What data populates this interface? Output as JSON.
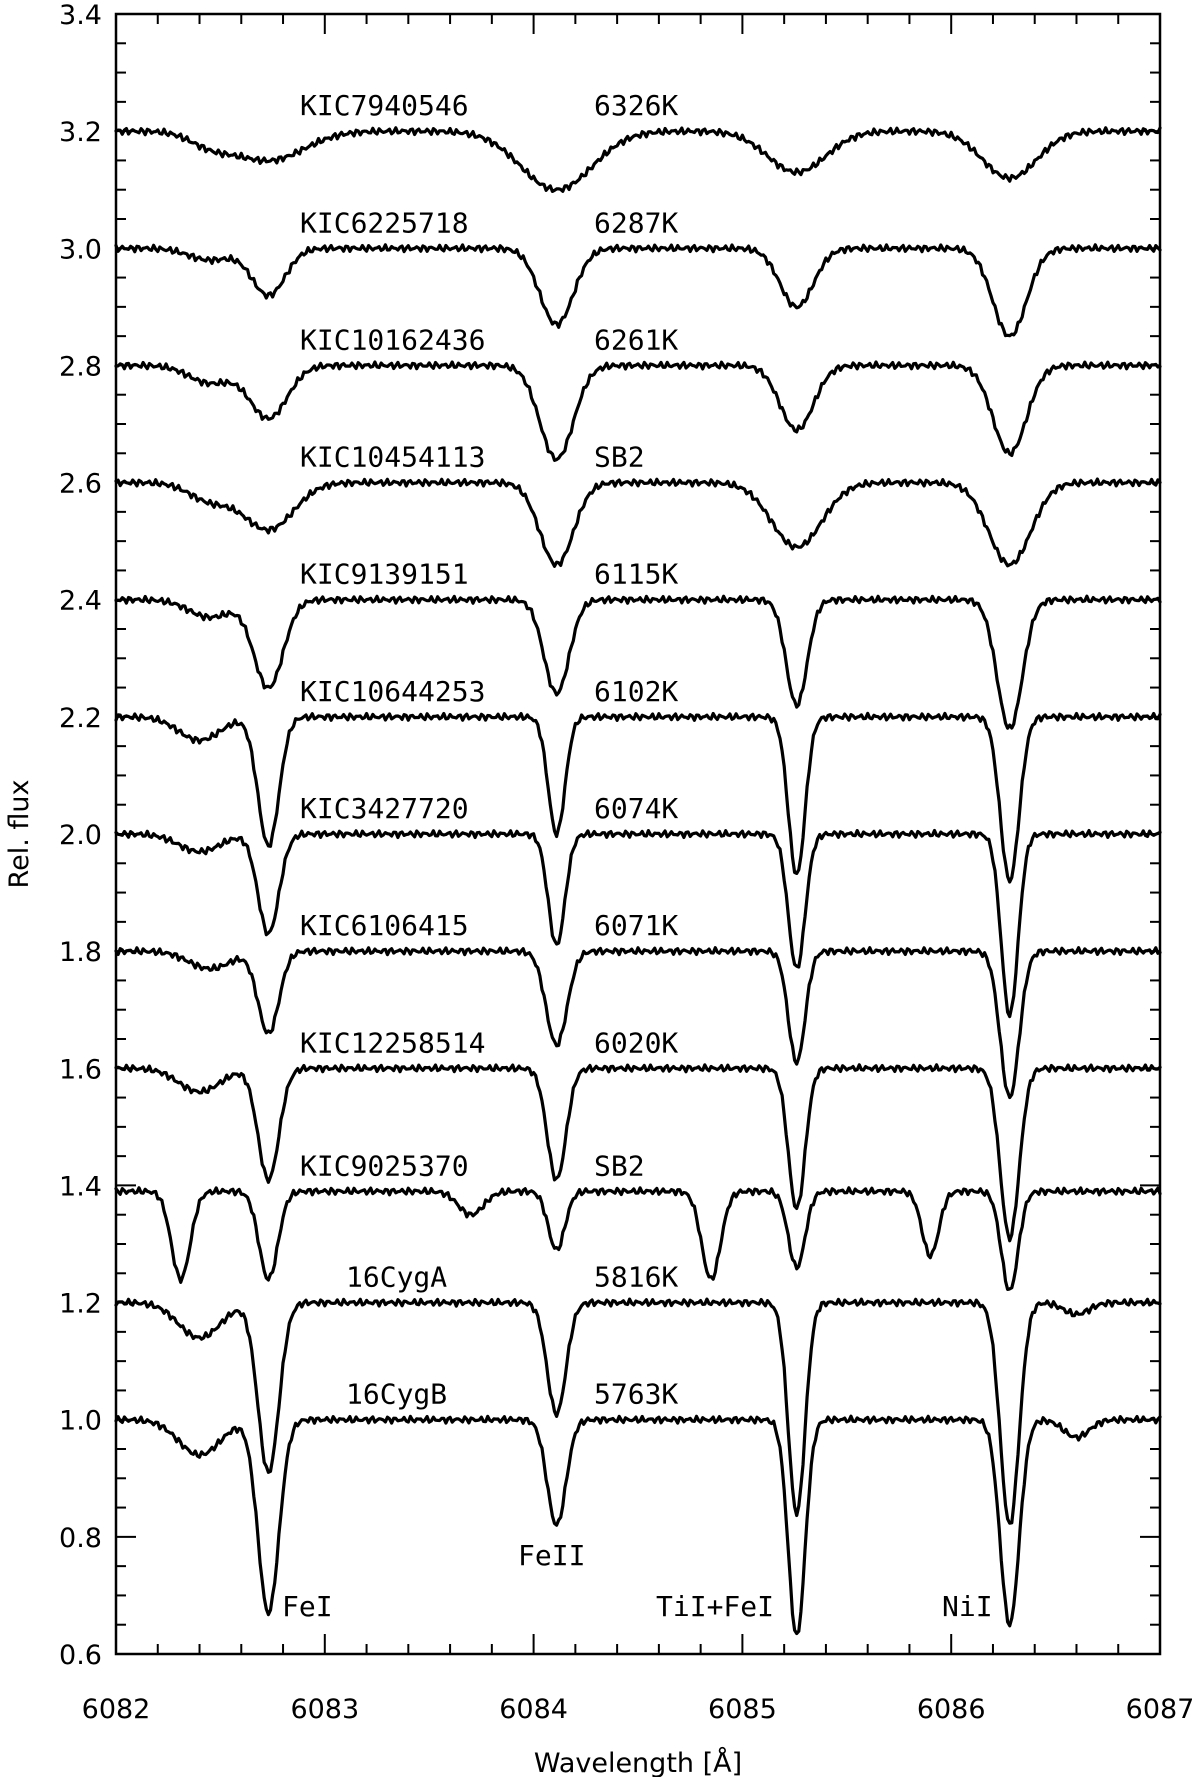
{
  "chart_data": {
    "type": "line",
    "title": "",
    "xlabel": "Wavelength [Å]",
    "ylabel": "Rel. flux",
    "xlim": [
      6082,
      6087
    ],
    "ylim": [
      0.6,
      3.4
    ],
    "x_ticks": [
      "6082",
      "6083",
      "6084",
      "6085",
      "6086",
      "6087"
    ],
    "y_ticks": [
      "0.6",
      "0.8",
      "1.0",
      "1.2",
      "1.4",
      "1.6",
      "1.8",
      "2.0",
      "2.2",
      "2.4",
      "2.6",
      "2.8",
      "3.0",
      "3.2",
      "3.4"
    ],
    "grid": false,
    "line_annotations": [
      {
        "label": "FeI",
        "x": 6082.73
      },
      {
        "label": "FeII",
        "x": 6084.11
      },
      {
        "label": "TiI+FeI",
        "x": 6085.26
      },
      {
        "label": "NiI",
        "x": 6086.28
      }
    ],
    "series": [
      {
        "name": "KIC7940546",
        "teff": "6326K",
        "offset": 3.2,
        "depths": [
          0.05,
          0.1,
          0.07,
          0.08
        ],
        "widths": [
          0.17,
          0.17,
          0.14,
          0.13
        ],
        "extra_lines": [
          [
            6082.45,
            0.02,
            0.1
          ]
        ]
      },
      {
        "name": "KIC6225718",
        "teff": "6287K",
        "offset": 3.0,
        "depths": [
          0.08,
          0.13,
          0.1,
          0.15
        ],
        "widths": [
          0.08,
          0.08,
          0.08,
          0.08
        ],
        "extra_lines": [
          [
            6082.45,
            0.02,
            0.1
          ]
        ]
      },
      {
        "name": "KIC10162436",
        "teff": "6261K",
        "offset": 2.8,
        "depths": [
          0.09,
          0.16,
          0.11,
          0.15
        ],
        "widths": [
          0.09,
          0.08,
          0.08,
          0.08
        ],
        "extra_lines": [
          [
            6082.45,
            0.03,
            0.1
          ]
        ]
      },
      {
        "name": "KIC10454113",
        "teff": "SB2",
        "offset": 2.6,
        "depths": [
          0.08,
          0.14,
          0.11,
          0.14
        ],
        "widths": [
          0.12,
          0.08,
          0.12,
          0.1
        ],
        "extra_lines": [
          [
            6082.45,
            0.03,
            0.1
          ]
        ]
      },
      {
        "name": "KIC9139151",
        "teff": "6115K",
        "offset": 2.4,
        "depths": [
          0.15,
          0.16,
          0.18,
          0.22
        ],
        "widths": [
          0.07,
          0.06,
          0.05,
          0.06
        ],
        "extra_lines": [
          [
            6082.45,
            0.03,
            0.1
          ]
        ]
      },
      {
        "name": "KIC10644253",
        "teff": "6102K",
        "offset": 2.2,
        "depths": [
          0.22,
          0.2,
          0.27,
          0.28
        ],
        "widths": [
          0.05,
          0.04,
          0.04,
          0.045
        ],
        "extra_lines": [
          [
            6082.4,
            0.04,
            0.1
          ]
        ]
      },
      {
        "name": "KIC3427720",
        "teff": "6074K",
        "offset": 2.0,
        "depths": [
          0.17,
          0.19,
          0.23,
          0.31
        ],
        "widths": [
          0.05,
          0.04,
          0.04,
          0.04
        ],
        "extra_lines": [
          [
            6082.4,
            0.03,
            0.1
          ]
        ]
      },
      {
        "name": "KIC6106415",
        "teff": "6071K",
        "offset": 1.8,
        "depths": [
          0.14,
          0.16,
          0.19,
          0.25
        ],
        "widths": [
          0.05,
          0.05,
          0.04,
          0.045
        ],
        "extra_lines": [
          [
            6082.45,
            0.03,
            0.1
          ]
        ]
      },
      {
        "name": "KIC12258514",
        "teff": "6020K",
        "offset": 1.6,
        "depths": [
          0.19,
          0.19,
          0.24,
          0.29
        ],
        "widths": [
          0.05,
          0.045,
          0.04,
          0.045
        ],
        "extra_lines": [
          [
            6082.4,
            0.04,
            0.1
          ]
        ]
      },
      {
        "name": "KIC9025370",
        "teff": "SB2",
        "offset": 1.39,
        "depths": [
          0.15,
          0.1,
          0.13,
          0.17
        ],
        "widths": [
          0.045,
          0.04,
          0.04,
          0.04
        ],
        "extra_lines": [
          [
            6082.31,
            0.15,
            0.045
          ],
          [
            6083.7,
            0.04,
            0.06
          ],
          [
            6084.85,
            0.15,
            0.045
          ],
          [
            6085.9,
            0.11,
            0.04
          ]
        ]
      },
      {
        "name": "16CygA",
        "teff": "5816K",
        "offset": 1.2,
        "depths": [
          0.29,
          0.19,
          0.36,
          0.38
        ],
        "widths": [
          0.05,
          0.045,
          0.04,
          0.045
        ],
        "extra_lines": [
          [
            6082.4,
            0.06,
            0.1
          ],
          [
            6086.6,
            0.02,
            0.06
          ]
        ]
      },
      {
        "name": "16CygB",
        "teff": "5763K",
        "offset": 1.0,
        "depths": [
          0.33,
          0.18,
          0.37,
          0.35
        ],
        "widths": [
          0.05,
          0.045,
          0.04,
          0.045
        ],
        "extra_lines": [
          [
            6082.4,
            0.06,
            0.1
          ],
          [
            6086.6,
            0.03,
            0.06
          ]
        ]
      }
    ]
  }
}
